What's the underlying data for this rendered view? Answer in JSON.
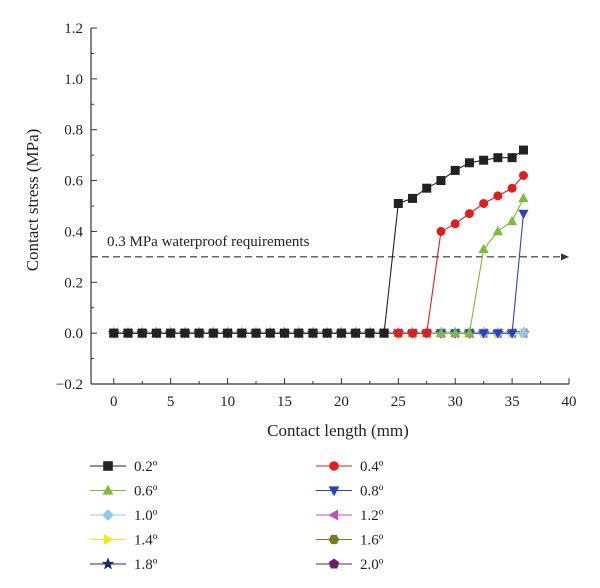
{
  "chart_data": {
    "type": "line",
    "xlabel": "Contact length (mm)",
    "ylabel": "Contact stress (MPa)",
    "xlim": [
      -2,
      40
    ],
    "ylim": [
      -0.2,
      1.2
    ],
    "xticks": [
      0,
      5,
      10,
      15,
      20,
      25,
      30,
      35,
      40
    ],
    "yticks": [
      -0.2,
      0.0,
      0.2,
      0.4,
      0.6,
      0.8,
      1.0,
      1.2
    ],
    "xtick_labels": [
      "0",
      "5",
      "10",
      "15",
      "20",
      "25",
      "30",
      "35",
      "40"
    ],
    "ytick_labels": [
      "−0.2",
      "0.0",
      "0.2",
      "0.4",
      "0.6",
      "0.8",
      "1.0",
      "1.2"
    ],
    "grid": false,
    "legend_position": "bottom",
    "threshold": {
      "y": 0.3,
      "label": "0.3 MPa waterproof requirements",
      "style": "dashed",
      "color": "#333333"
    },
    "series": [
      {
        "name": "0.2º",
        "color": "#222222",
        "marker": "square",
        "x": [
          0,
          1.25,
          2.5,
          3.75,
          5,
          6.25,
          7.5,
          8.75,
          10,
          11.25,
          12.5,
          13.75,
          15,
          16.25,
          17.5,
          18.75,
          20,
          21.25,
          22.5,
          23.75,
          25,
          26.25,
          27.5,
          28.75,
          30,
          31.25,
          32.5,
          33.75,
          35,
          36
        ],
        "y": [
          0,
          0,
          0,
          0,
          0,
          0,
          0,
          0,
          0,
          0,
          0,
          0,
          0,
          0,
          0,
          0,
          0,
          0,
          0,
          0,
          0.51,
          0.53,
          0.57,
          0.6,
          0.64,
          0.67,
          0.68,
          0.69,
          0.69,
          0.72
        ]
      },
      {
        "name": "0.4º",
        "color": "#dd1f1f",
        "marker": "circle",
        "x": [
          0,
          1.25,
          2.5,
          3.75,
          5,
          6.25,
          7.5,
          8.75,
          10,
          11.25,
          12.5,
          13.75,
          15,
          16.25,
          17.5,
          18.75,
          20,
          21.25,
          22.5,
          23.75,
          25,
          26.25,
          27.5,
          28.75,
          30,
          31.25,
          32.5,
          33.75,
          35,
          36
        ],
        "y": [
          0,
          0,
          0,
          0,
          0,
          0,
          0,
          0,
          0,
          0,
          0,
          0,
          0,
          0,
          0,
          0,
          0,
          0,
          0,
          0,
          0,
          0,
          0,
          0.4,
          0.43,
          0.47,
          0.51,
          0.54,
          0.57,
          0.62
        ]
      },
      {
        "name": "0.6º",
        "color": "#7dbb3a",
        "marker": "triangle-up",
        "x": [
          0,
          1.25,
          2.5,
          3.75,
          5,
          6.25,
          7.5,
          8.75,
          10,
          11.25,
          12.5,
          13.75,
          15,
          16.25,
          17.5,
          18.75,
          20,
          21.25,
          22.5,
          23.75,
          25,
          26.25,
          27.5,
          28.75,
          30,
          31.25,
          32.5,
          33.75,
          35,
          36
        ],
        "y": [
          0,
          0,
          0,
          0,
          0,
          0,
          0,
          0,
          0,
          0,
          0,
          0,
          0,
          0,
          0,
          0,
          0,
          0,
          0,
          0,
          0,
          0,
          0,
          0,
          0,
          0,
          0.33,
          0.4,
          0.44,
          0.53
        ]
      },
      {
        "name": "0.8º",
        "color": "#2845b8",
        "marker": "triangle-down",
        "x": [
          0,
          1.25,
          2.5,
          3.75,
          5,
          6.25,
          7.5,
          8.75,
          10,
          11.25,
          12.5,
          13.75,
          15,
          16.25,
          17.5,
          18.75,
          20,
          21.25,
          22.5,
          23.75,
          25,
          26.25,
          27.5,
          28.75,
          30,
          31.25,
          32.5,
          33.75,
          35,
          36
        ],
        "y": [
          0,
          0,
          0,
          0,
          0,
          0,
          0,
          0,
          0,
          0,
          0,
          0,
          0,
          0,
          0,
          0,
          0,
          0,
          0,
          0,
          0,
          0,
          0,
          0,
          0,
          0,
          0,
          0,
          0,
          0.47
        ]
      },
      {
        "name": "1.0º",
        "color": "#8fcbe8",
        "marker": "diamond",
        "x": [
          0,
          1.25,
          2.5,
          3.75,
          5,
          6.25,
          7.5,
          8.75,
          10,
          11.25,
          12.5,
          13.75,
          15,
          16.25,
          17.5,
          18.75,
          20,
          21.25,
          22.5,
          23.75,
          25,
          26.25,
          27.5,
          28.75,
          30,
          31.25,
          32.5,
          33.75,
          35,
          36
        ],
        "y": [
          0,
          0,
          0,
          0,
          0,
          0,
          0,
          0,
          0,
          0,
          0,
          0,
          0,
          0,
          0,
          0,
          0,
          0,
          0,
          0,
          0,
          0,
          0,
          0,
          0,
          0,
          0,
          0,
          0,
          0
        ]
      },
      {
        "name": "1.2º",
        "color": "#c04fb8",
        "marker": "triangle-left",
        "x": [
          0,
          1.25,
          2.5,
          3.75,
          5,
          6.25,
          7.5,
          8.75,
          10,
          11.25,
          12.5,
          13.75,
          15,
          16.25,
          17.5,
          18.75,
          20,
          21.25,
          22.5,
          23.75,
          25,
          26.25,
          27.5,
          28.75,
          30,
          31.25,
          32.5,
          33.75,
          35,
          36
        ],
        "y": [
          0,
          0,
          0,
          0,
          0,
          0,
          0,
          0,
          0,
          0,
          0,
          0,
          0,
          0,
          0,
          0,
          0,
          0,
          0,
          0,
          0,
          0,
          0,
          0,
          0,
          0,
          0,
          0,
          0,
          0
        ]
      },
      {
        "name": "1.4º",
        "color": "#f2ea1c",
        "marker": "triangle-right",
        "x": [
          0,
          1.25,
          2.5,
          3.75,
          5,
          6.25,
          7.5,
          8.75,
          10,
          11.25,
          12.5,
          13.75,
          15,
          16.25,
          17.5,
          18.75,
          20,
          21.25,
          22.5,
          23.75,
          25,
          26.25,
          27.5,
          28.75,
          30,
          31.25,
          32.5,
          33.75,
          35,
          36
        ],
        "y": [
          0,
          0,
          0,
          0,
          0,
          0,
          0,
          0,
          0,
          0,
          0,
          0,
          0,
          0,
          0,
          0,
          0,
          0,
          0,
          0,
          0,
          0,
          0,
          0,
          0,
          0,
          0,
          0,
          0,
          0
        ]
      },
      {
        "name": "1.6º",
        "color": "#7a7a22",
        "marker": "hexagon",
        "x": [
          0,
          1.25,
          2.5,
          3.75,
          5,
          6.25,
          7.5,
          8.75,
          10,
          11.25,
          12.5,
          13.75,
          15,
          16.25,
          17.5,
          18.75,
          20,
          21.25,
          22.5,
          23.75,
          25,
          26.25,
          27.5,
          28.75,
          30,
          31.25,
          32.5,
          33.75,
          35,
          36
        ],
        "y": [
          0,
          0,
          0,
          0,
          0,
          0,
          0,
          0,
          0,
          0,
          0,
          0,
          0,
          0,
          0,
          0,
          0,
          0,
          0,
          0,
          0,
          0,
          0,
          0,
          0,
          0,
          0,
          0,
          0,
          0
        ]
      },
      {
        "name": "1.8º",
        "color": "#1f2a6b",
        "marker": "star",
        "x": [
          0,
          1.25,
          2.5,
          3.75,
          5,
          6.25,
          7.5,
          8.75,
          10,
          11.25,
          12.5,
          13.75,
          15,
          16.25,
          17.5,
          18.75,
          20,
          21.25,
          22.5,
          23.75,
          25,
          26.25,
          27.5,
          28.75,
          30,
          31.25,
          32.5,
          33.75,
          35,
          36
        ],
        "y": [
          0,
          0,
          0,
          0,
          0,
          0,
          0,
          0,
          0,
          0,
          0,
          0,
          0,
          0,
          0,
          0,
          0,
          0,
          0,
          0,
          0,
          0,
          0,
          0,
          0,
          0,
          0,
          0,
          0,
          0
        ]
      },
      {
        "name": "2.0º",
        "color": "#6a1f6a",
        "marker": "pentagon",
        "x": [
          0,
          1.25,
          2.5,
          3.75,
          5,
          6.25,
          7.5,
          8.75,
          10,
          11.25,
          12.5,
          13.75,
          15,
          16.25,
          17.5,
          18.75,
          20,
          21.25,
          22.5,
          23.75,
          25,
          26.25,
          27.5,
          28.75,
          30,
          31.25,
          32.5,
          33.75,
          35,
          36
        ],
        "y": [
          0,
          0,
          0,
          0,
          0,
          0,
          0,
          0,
          0,
          0,
          0,
          0,
          0,
          0,
          0,
          0,
          0,
          0,
          0,
          0,
          0,
          0,
          0,
          0,
          0,
          0,
          0,
          0,
          0,
          0
        ]
      }
    ]
  }
}
